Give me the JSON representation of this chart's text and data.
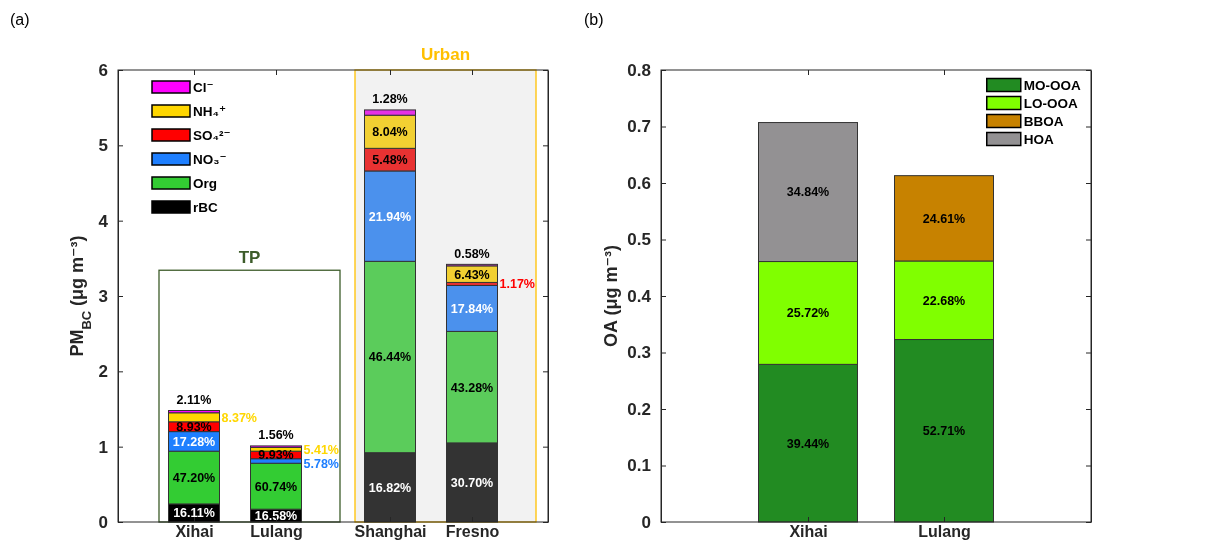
{
  "chart_data": [
    {
      "type": "bar",
      "title": "(a)",
      "ylabel": "PM$_{BC}$ (μg m⁻³)",
      "stacked": true,
      "legend": "top left",
      "categories": [
        "Xihai",
        "Lulang",
        "Shanghai",
        "Fresno"
      ],
      "series": [
        {
          "name": "rBC",
          "color": "#000000",
          "colors": [
            "#000000",
            "#000000",
            "#333333",
            "#333333"
          ],
          "values": [
            0.24,
            0.17,
            0.92,
            1.05
          ]
        },
        {
          "name": "Org",
          "color": "#33cc33",
          "colors": [
            "#33cc33",
            "#33cc33",
            "#5bcc5b",
            "#5bcc5b"
          ],
          "values": [
            0.7,
            0.61,
            2.54,
            1.48
          ]
        },
        {
          "name": "NO₃⁻",
          "color": "#1e7fff",
          "colors": [
            "#1e7fff",
            "#1e7fff",
            "#4b91ed",
            "#4b91ed"
          ],
          "values": [
            0.26,
            0.06,
            1.2,
            0.61
          ]
        },
        {
          "name": "SO₄²⁻",
          "color": "#ff0000",
          "colors": [
            "#ff0000",
            "#ff0000",
            "#e83232",
            "#e83232"
          ],
          "values": [
            0.13,
            0.1,
            0.3,
            0.04
          ]
        },
        {
          "name": "NH₄⁺",
          "color": "#ffd700",
          "colors": [
            "#ffd700",
            "#ffd700",
            "#f2d032",
            "#f2d032"
          ],
          "values": [
            0.12,
            0.05,
            0.44,
            0.22
          ]
        },
        {
          "name": "Cl⁻",
          "color": "#ff00ff",
          "colors": [
            "#ff00ff",
            "#ff00ff",
            "#e632e6",
            "#e632e6"
          ],
          "values": [
            0.03,
            0.02,
            0.07,
            0.02
          ]
        }
      ],
      "ylim": [
        0,
        6
      ],
      "yticks": [
        0,
        1,
        2,
        3,
        4,
        5,
        6
      ],
      "annotations": [
        "TP",
        "Urban",
        "16.11%",
        "47.20%",
        "17.28%",
        "8.93%",
        "8.37%",
        "2.11%",
        "16.58%",
        "60.74%",
        "5.78%",
        "9.93%",
        "5.41%",
        "1.56%",
        "16.82%",
        "46.44%",
        "21.94%",
        "5.48%",
        "8.04%",
        "1.28%",
        "30.70%",
        "43.28%",
        "17.84%",
        "1.17%",
        "6.43%",
        "0.58%"
      ]
    },
    {
      "type": "bar",
      "title": "(b)",
      "ylabel": "OA (μg m⁻³)",
      "stacked": true,
      "legend": "top right",
      "categories": [
        "Xihai",
        "Lulang"
      ],
      "series": [
        {
          "name": "MO-OOA",
          "color": "#228b22",
          "values": [
            0.279,
            0.323
          ]
        },
        {
          "name": "LO-OOA",
          "color": "#80ff00",
          "values": [
            0.182,
            0.139
          ]
        },
        {
          "name": "BBOA",
          "color": "#c78200",
          "values": [
            null,
            0.151
          ]
        },
        {
          "name": "HOA",
          "color": "#939193",
          "values": [
            0.246,
            null
          ]
        }
      ],
      "ylim": [
        0,
        0.8
      ],
      "yticks": [
        0,
        0.1,
        0.2,
        0.3,
        0.4,
        0.5,
        0.6,
        0.7,
        0.8
      ],
      "annotations": [
        "39.44%",
        "25.72%",
        "34.84%",
        "52.71%",
        "22.68%",
        "24.61%"
      ]
    }
  ]
}
